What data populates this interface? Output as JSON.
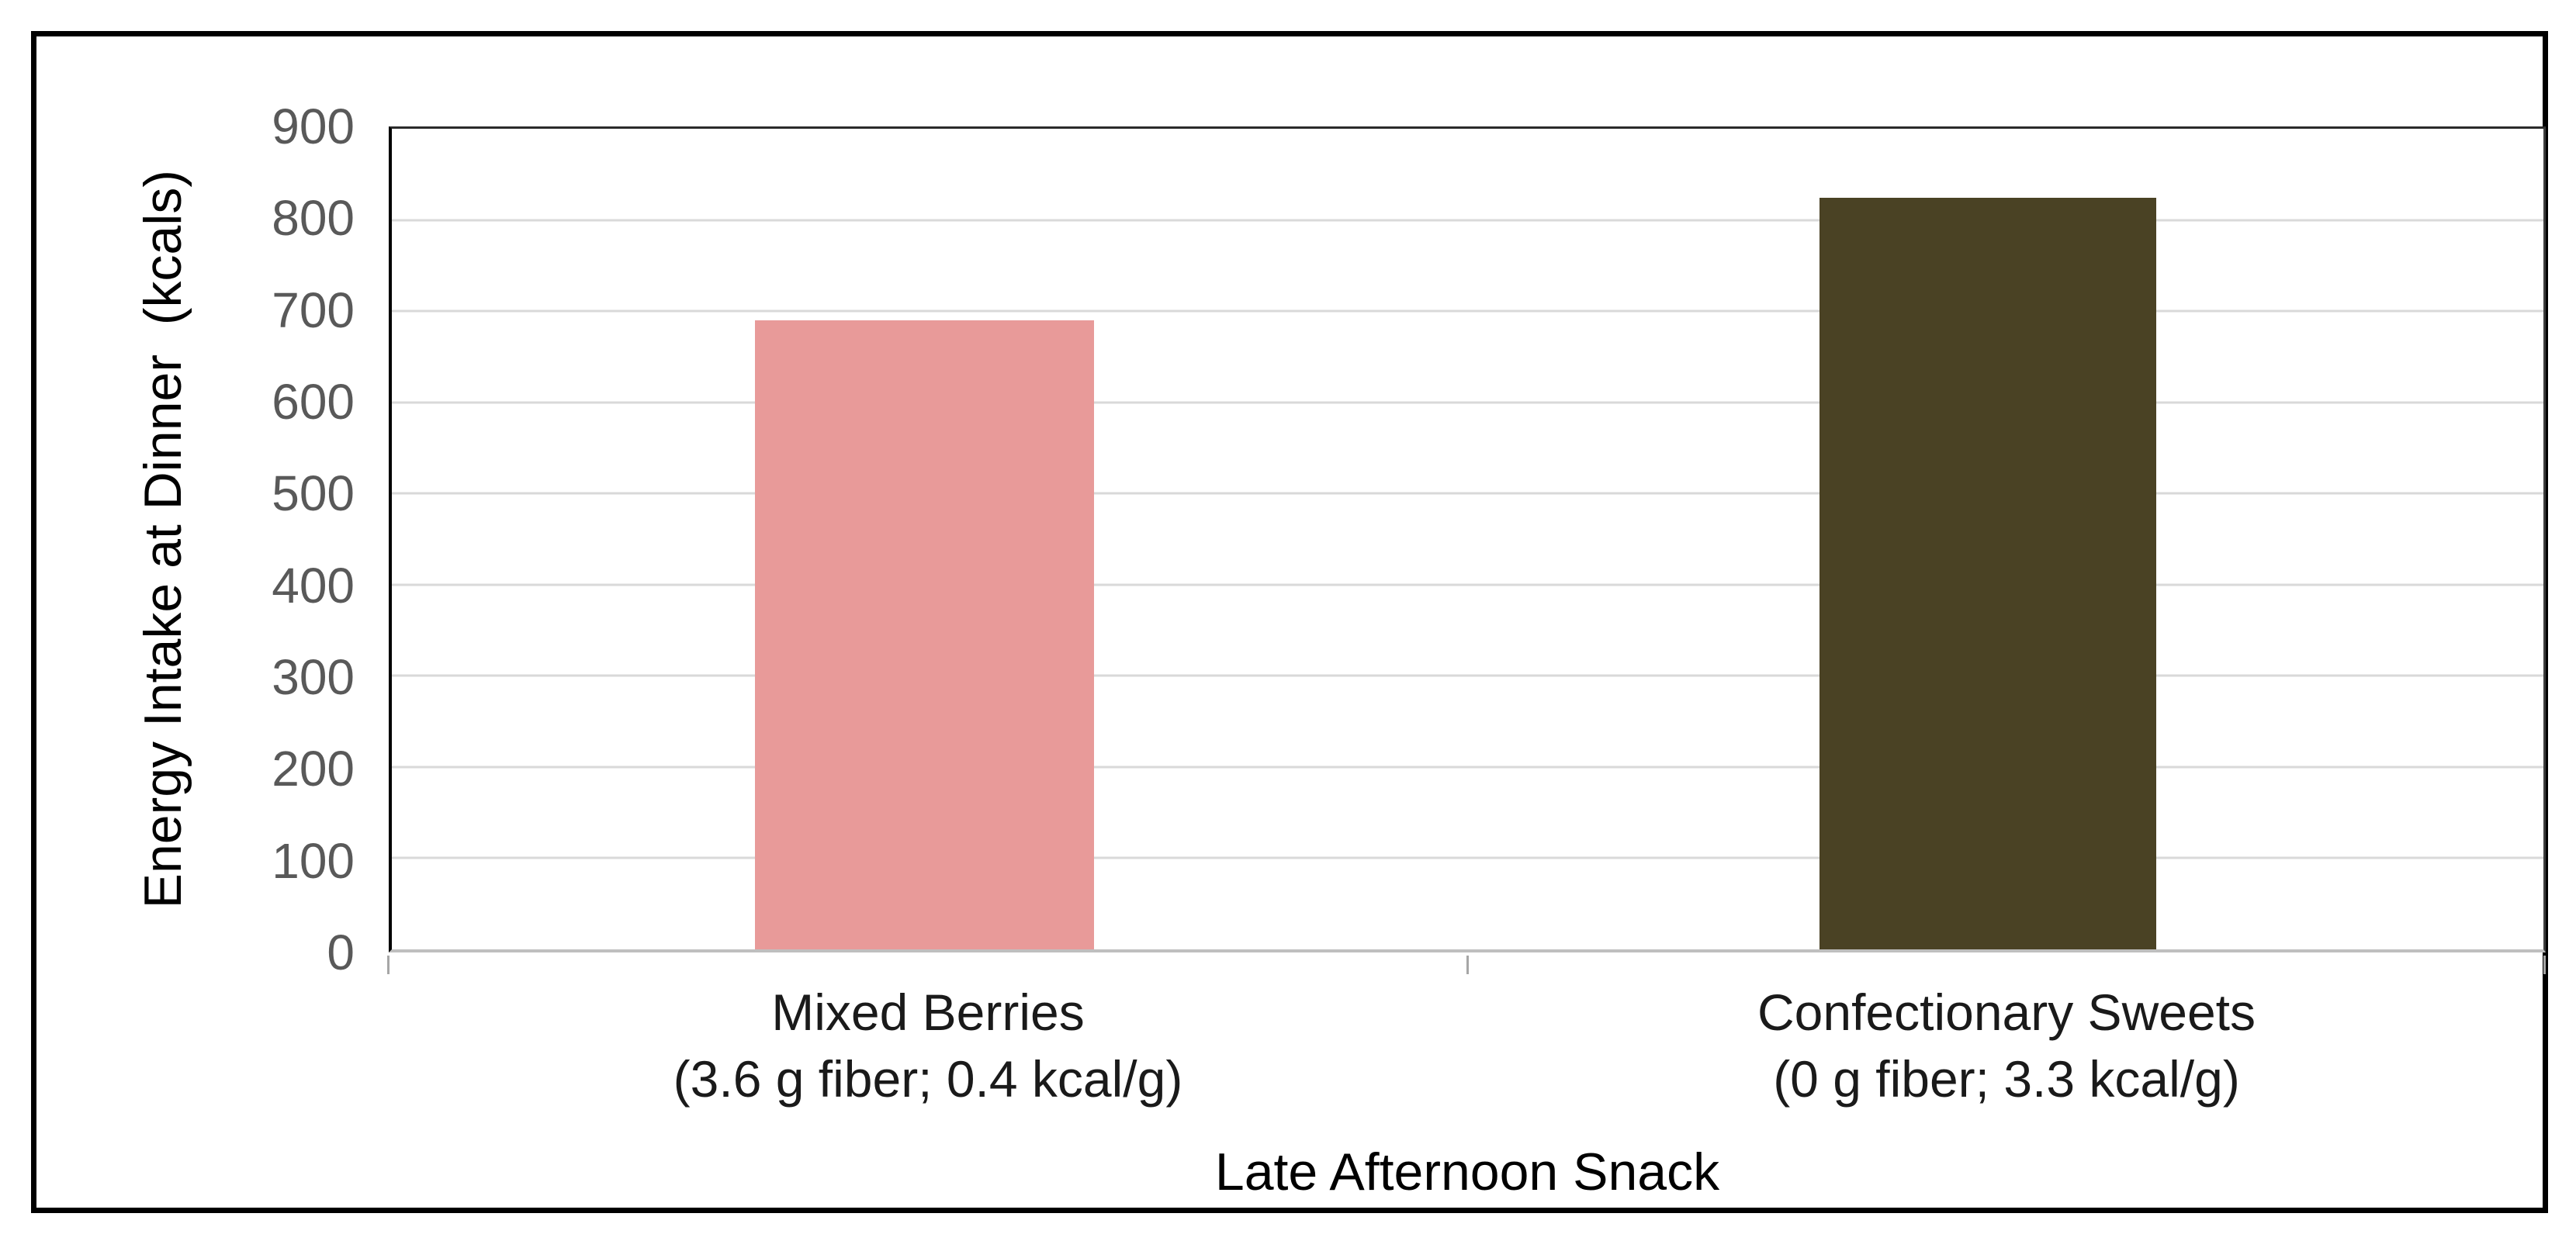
{
  "chart_data": {
    "type": "bar",
    "title": "",
    "categories": [
      "Mixed Berries",
      "Confectionary Sweets"
    ],
    "category_sublabels": [
      "(3.6 g fiber; 0.4 kcal/g)",
      "(0 g fiber; 3.3 kcal/g)"
    ],
    "values": [
      690,
      824
    ],
    "bar_colors": [
      "#e89a99",
      "#4a4224"
    ],
    "xlabel": "Late Afternoon Snack",
    "ylabel": "Energy Intake at Dinner  (kcals)",
    "ylim": [
      0,
      900
    ],
    "ytick_step": 100,
    "ytick_labels": [
      "900",
      "800",
      "700",
      "600",
      "500",
      "400",
      "300",
      "200",
      "100",
      "0"
    ],
    "grid": true,
    "legend": false,
    "colors": {
      "gridline": "#d9d9d9",
      "axis_line": "#000000",
      "bottom_axis_line": "#bfbfbf",
      "tick_label": "#595959",
      "category_label": "#1a1a1a",
      "frame_border": "#000000"
    }
  }
}
